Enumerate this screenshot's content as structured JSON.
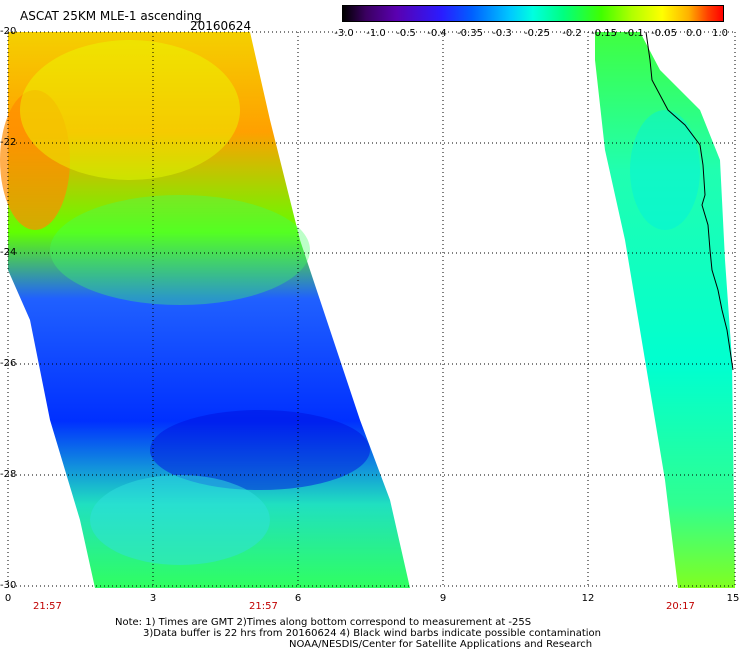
{
  "header": {
    "title": "ASCAT 25KM MLE-1 ascending",
    "date": "20160624"
  },
  "colorbar": {
    "labels": [
      "-3.0",
      "-1.0",
      "-0.5",
      "-0.4",
      "-0.35",
      "-0.3",
      "-0.25",
      "-0.2",
      "-0.15",
      "-0.1",
      "-0.05",
      "0.0",
      "1.0"
    ]
  },
  "axes": {
    "y_ticks": [
      "-20",
      "-22",
      "-24",
      "-26",
      "-28",
      "-30"
    ],
    "x_ticks": [
      "0",
      "3",
      "6",
      "9",
      "12",
      "15"
    ]
  },
  "pass_times": [
    "21:57",
    "21:57",
    "20:17"
  ],
  "notes": {
    "line1": "Note: 1) Times are GMT 2)Times along bottom correspond to measurement at -25S",
    "line2": "3)Data buffer is 22 hrs from 20160624 4) Black wind barbs indicate possible contamination",
    "line3": "NOAA/NESDIS/Center for Satellite Applications and Research"
  },
  "colors": {
    "coastline": "#000000",
    "time_label": "#c00000"
  }
}
